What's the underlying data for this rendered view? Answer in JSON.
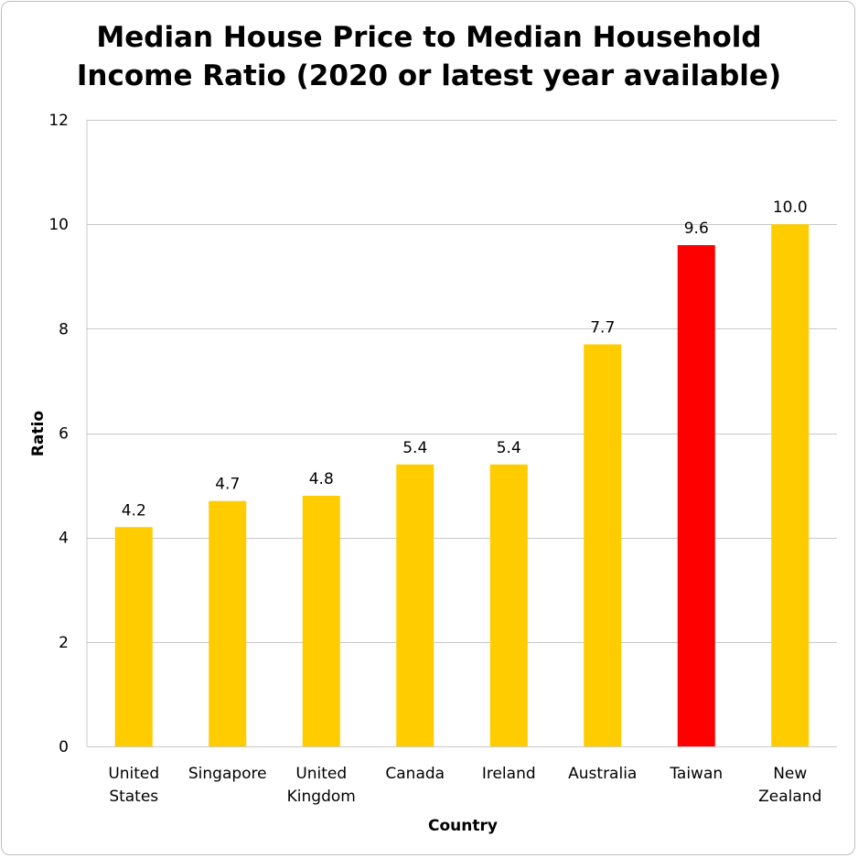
{
  "chart_data": {
    "type": "bar",
    "title_lines": [
      "Median House Price to Median Household",
      "Income Ratio (2020 or latest year available)"
    ],
    "xlabel": "Country",
    "ylabel": "Ratio",
    "ylim": [
      0,
      12
    ],
    "yticks": [
      0,
      2,
      4,
      6,
      8,
      10,
      12
    ],
    "grid": true,
    "legend": "none",
    "categories": [
      [
        "United",
        "States"
      ],
      [
        "Singapore"
      ],
      [
        "United",
        "Kingdom"
      ],
      [
        "Canada"
      ],
      [
        "Ireland"
      ],
      [
        "Australia"
      ],
      [
        "Taiwan"
      ],
      [
        "New",
        "Zealand"
      ]
    ],
    "values": [
      4.2,
      4.7,
      4.8,
      5.4,
      5.4,
      7.7,
      9.6,
      10.0
    ],
    "value_labels": [
      "4.2",
      "4.7",
      "4.8",
      "5.4",
      "5.4",
      "7.7",
      "9.6",
      "10.0"
    ],
    "colors": [
      "#FFCC00",
      "#FFCC00",
      "#FFCC00",
      "#FFCC00",
      "#FFCC00",
      "#FFCC00",
      "#FF0000",
      "#FFCC00"
    ],
    "gridline_color": "#C8C8C8"
  }
}
